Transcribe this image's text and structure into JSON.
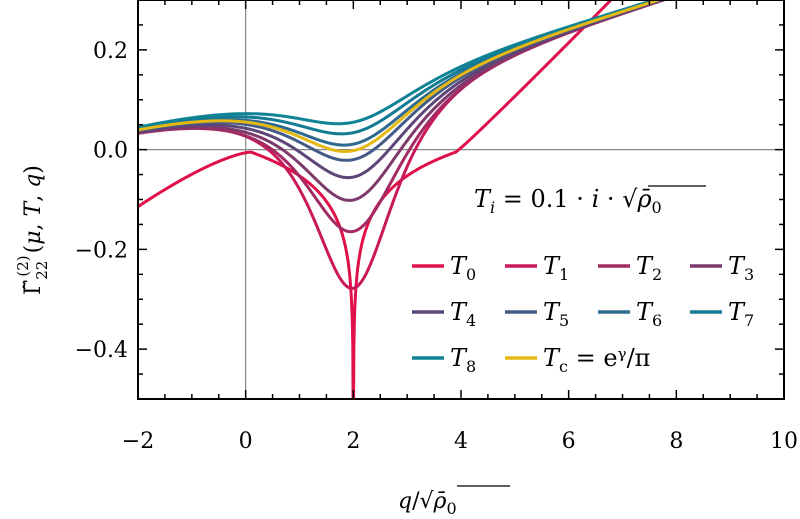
{
  "chart_data": {
    "type": "line",
    "xlabel": "q/√ρ̄₀",
    "ylabel": "Γ̃₂₂⁽²⁾(μ, T, q)",
    "xlim": [
      -2,
      10
    ],
    "ylim": [
      -0.5,
      0.3
    ],
    "xticks": [
      -2,
      0,
      2,
      4,
      6,
      8,
      10
    ],
    "xtick_labels": [
      "−2",
      "0",
      "2",
      "4",
      "6",
      "8",
      "10"
    ],
    "yticks": [
      -0.4,
      -0.2,
      0.0,
      0.2
    ],
    "ytick_labels": [
      "−0.4",
      "−0.2",
      "0.0",
      "0.2"
    ],
    "reference_lines": {
      "x": 0,
      "y": 0
    },
    "annotation": "T_i = 0.1 · i · √ρ̄₀",
    "legend_position": "lower-right",
    "grid": false,
    "series": [
      {
        "name": "T0",
        "label_main": "T",
        "label_sub": "0",
        "color": "#e0104a",
        "min_value": -0.5
      },
      {
        "name": "T1",
        "label_main": "T",
        "label_sub": "1",
        "color": "#c9195b",
        "min_value": -0.278
      },
      {
        "name": "T2",
        "label_main": "T",
        "label_sub": "2",
        "color": "#a32a63",
        "min_value": -0.164
      },
      {
        "name": "T3",
        "label_main": "T",
        "label_sub": "3",
        "color": "#7d3a6c",
        "min_value": -0.101
      },
      {
        "name": "T4",
        "label_main": "T",
        "label_sub": "4",
        "color": "#5e4577",
        "min_value": -0.055
      },
      {
        "name": "T5",
        "label_main": "T",
        "label_sub": "5",
        "color": "#445b87",
        "min_value": -0.02
      },
      {
        "name": "T6",
        "label_main": "T",
        "label_sub": "6",
        "color": "#2e6a8f",
        "min_value": 0.011
      },
      {
        "name": "T7",
        "label_main": "T",
        "label_sub": "7",
        "color": "#137a93",
        "min_value": 0.034
      },
      {
        "name": "T8",
        "label_main": "T",
        "label_sub": "8",
        "color": "#0f8296",
        "min_value": 0.055
      },
      {
        "name": "Tc",
        "label_main": "T",
        "label_sub": "c",
        "label_extra": "= eᵞ/π",
        "color": "#e5b814",
        "min_value": -0.002
      }
    ]
  }
}
